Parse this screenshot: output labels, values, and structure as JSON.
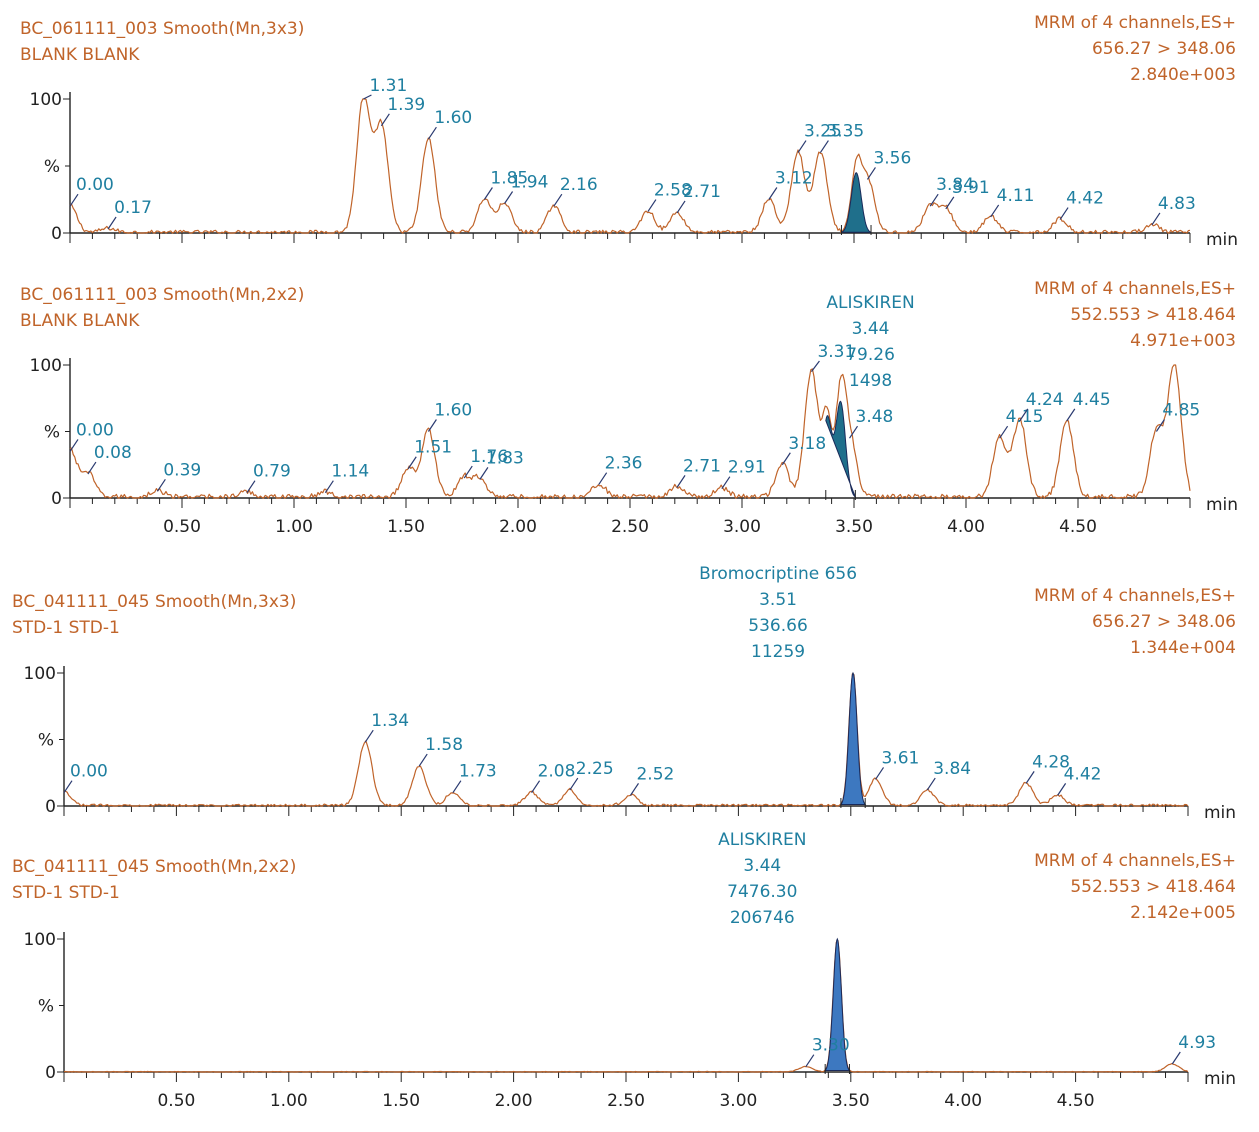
{
  "chart_data": [
    {
      "type": "line",
      "title": "BC_061111_003 Smooth(Mn,3x3)",
      "subtitle": "BLANK BLANK",
      "channel": "MRM of 4 channels,ES+",
      "transition": "656.27 > 348.06",
      "intensity": "2.840e+003",
      "xlabel": "min",
      "ylabel": "%",
      "xlim": [
        0,
        5.0
      ],
      "ylim": [
        0,
        100
      ],
      "yticks": [
        "100",
        "0"
      ],
      "xtick_labels": [],
      "fill_color": "#1f6f8b",
      "peaks": [
        {
          "t": 0.0,
          "h": 20,
          "label": "0.00"
        },
        {
          "t": 0.17,
          "h": 3,
          "label": "0.17"
        },
        {
          "t": 1.31,
          "h": 100,
          "label": "1.31"
        },
        {
          "t": 1.39,
          "h": 80,
          "label": "1.39"
        },
        {
          "t": 1.6,
          "h": 70,
          "label": "1.60"
        },
        {
          "t": 1.85,
          "h": 25,
          "label": "1.85"
        },
        {
          "t": 1.94,
          "h": 22,
          "label": "1.94"
        },
        {
          "t": 2.16,
          "h": 20,
          "label": "2.16"
        },
        {
          "t": 2.58,
          "h": 16,
          "label": "2.58"
        },
        {
          "t": 2.71,
          "h": 15,
          "label": "2.71"
        },
        {
          "t": 3.12,
          "h": 25,
          "label": "3.12"
        },
        {
          "t": 3.25,
          "h": 60,
          "label": "3.25"
        },
        {
          "t": 3.35,
          "h": 60,
          "label": "3.35"
        },
        {
          "t": 3.56,
          "h": 40,
          "label": "3.56"
        },
        {
          "t": 3.84,
          "h": 20,
          "label": "3.84"
        },
        {
          "t": 3.91,
          "h": 18,
          "label": "3.91"
        },
        {
          "t": 4.11,
          "h": 12,
          "label": "4.11"
        },
        {
          "t": 4.42,
          "h": 10,
          "label": "4.42"
        },
        {
          "t": 4.83,
          "h": 6,
          "label": "4.83"
        }
      ],
      "integrated_peak": {
        "t": 3.51,
        "h": 45,
        "name": "",
        "rt": "",
        "area": "",
        "height": ""
      }
    },
    {
      "type": "line",
      "title": "BC_061111_003 Smooth(Mn,2x2)",
      "subtitle": "BLANK BLANK",
      "channel": "MRM of 4 channels,ES+",
      "transition": "552.553 > 418.464",
      "intensity": "4.971e+003",
      "xlabel": "min",
      "ylabel": "%",
      "xlim": [
        0,
        5.0
      ],
      "ylim": [
        0,
        100
      ],
      "yticks": [
        "100",
        "0"
      ],
      "xtick_labels": [
        "0.50",
        "1.00",
        "1.50",
        "2.00",
        "2.50",
        "3.00",
        "3.50",
        "4.00",
        "4.50"
      ],
      "fill_color": "#1f6f8b",
      "peaks": [
        {
          "t": 0.0,
          "h": 35,
          "label": "0.00"
        },
        {
          "t": 0.08,
          "h": 18,
          "label": "0.08"
        },
        {
          "t": 0.39,
          "h": 5,
          "label": "0.39"
        },
        {
          "t": 0.79,
          "h": 4,
          "label": "0.79"
        },
        {
          "t": 1.14,
          "h": 4,
          "label": "1.14"
        },
        {
          "t": 1.51,
          "h": 22,
          "label": "1.51"
        },
        {
          "t": 1.6,
          "h": 50,
          "label": "1.60"
        },
        {
          "t": 1.76,
          "h": 15,
          "label": "1.76"
        },
        {
          "t": 1.83,
          "h": 14,
          "label": "1.83"
        },
        {
          "t": 2.36,
          "h": 10,
          "label": "2.36"
        },
        {
          "t": 2.71,
          "h": 8,
          "label": "2.71"
        },
        {
          "t": 2.91,
          "h": 7,
          "label": "2.91"
        },
        {
          "t": 3.18,
          "h": 25,
          "label": "3.18"
        },
        {
          "t": 3.31,
          "h": 95,
          "label": "3.31"
        },
        {
          "t": 3.48,
          "h": 45,
          "label": "3.48"
        },
        {
          "t": 4.15,
          "h": 45,
          "label": "4.15"
        },
        {
          "t": 4.24,
          "h": 58,
          "label": "4.24"
        },
        {
          "t": 4.45,
          "h": 58,
          "label": "4.45"
        },
        {
          "t": 4.85,
          "h": 50,
          "label": "4.85"
        },
        {
          "t": 4.93,
          "h": 100,
          "label": ""
        }
      ],
      "integrated_peak": {
        "t": 3.44,
        "h": 72,
        "name": "ALISKIREN",
        "rt": "3.44",
        "area": "79.26",
        "height": "1498"
      }
    },
    {
      "type": "line",
      "title": "BC_041111_045 Smooth(Mn,3x3)",
      "subtitle": "STD-1 STD-1",
      "channel": "MRM of 4 channels,ES+",
      "transition": "656.27 > 348.06",
      "intensity": "1.344e+004",
      "xlabel": "min",
      "ylabel": "%",
      "xlim": [
        0,
        5.0
      ],
      "ylim": [
        0,
        100
      ],
      "yticks": [
        "100",
        "0"
      ],
      "xtick_labels": [],
      "fill_color": "#3d78c0",
      "peaks": [
        {
          "t": 0.0,
          "h": 10,
          "label": "0.00"
        },
        {
          "t": 1.34,
          "h": 48,
          "label": "1.34"
        },
        {
          "t": 1.58,
          "h": 30,
          "label": "1.58"
        },
        {
          "t": 1.73,
          "h": 10,
          "label": "1.73"
        },
        {
          "t": 2.08,
          "h": 10,
          "label": "2.08"
        },
        {
          "t": 2.25,
          "h": 12,
          "label": "2.25"
        },
        {
          "t": 2.52,
          "h": 8,
          "label": "2.52"
        },
        {
          "t": 3.61,
          "h": 20,
          "label": "3.61"
        },
        {
          "t": 3.84,
          "h": 12,
          "label": "3.84"
        },
        {
          "t": 4.28,
          "h": 17,
          "label": "4.28"
        },
        {
          "t": 4.42,
          "h": 8,
          "label": "4.42"
        }
      ],
      "integrated_peak": {
        "t": 3.51,
        "h": 100,
        "name": "Bromocriptine 656",
        "rt": "3.51",
        "area": "536.66",
        "height": "11259"
      }
    },
    {
      "type": "line",
      "title": "BC_041111_045 Smooth(Mn,2x2)",
      "subtitle": "STD-1 STD-1",
      "channel": "MRM of 4 channels,ES+",
      "transition": "552.553 > 418.464",
      "intensity": "2.142e+005",
      "xlabel": "min",
      "ylabel": "%",
      "xlim": [
        0,
        5.0
      ],
      "ylim": [
        0,
        100
      ],
      "yticks": [
        "100",
        "0"
      ],
      "xtick_labels": [
        "0.50",
        "1.00",
        "1.50",
        "2.00",
        "2.50",
        "3.00",
        "3.50",
        "4.00",
        "4.50"
      ],
      "fill_color": "#3d78c0",
      "peaks": [
        {
          "t": 3.3,
          "h": 4,
          "label": "3.30"
        },
        {
          "t": 4.93,
          "h": 6,
          "label": "4.93"
        }
      ],
      "integrated_peak": {
        "t": 3.44,
        "h": 100,
        "name": "ALISKIREN",
        "rt": "3.44",
        "area": "7476.30",
        "height": "206746"
      }
    }
  ]
}
